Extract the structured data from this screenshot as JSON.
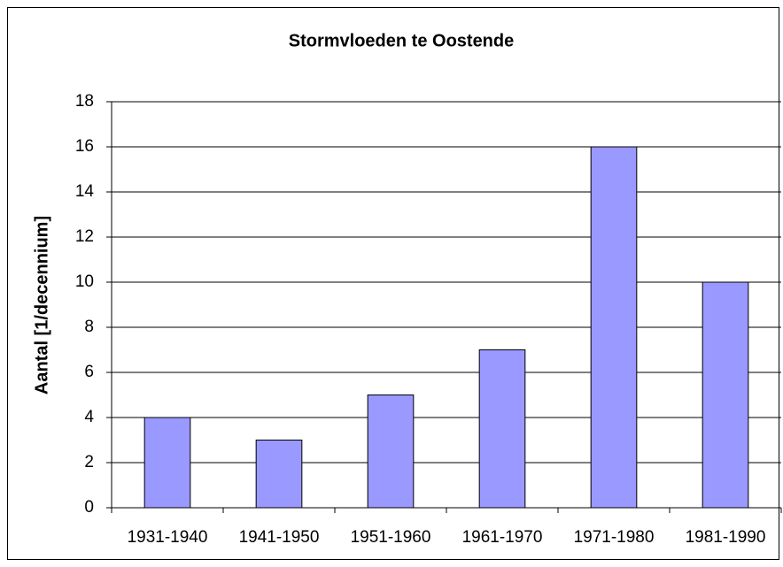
{
  "chart_data": {
    "type": "bar",
    "title": "Stormvloeden te Oostende",
    "y_label": "Aantal [1/decennium]",
    "categories": [
      "1931-1940",
      "1941-1950",
      "1951-1960",
      "1961-1970",
      "1971-1980",
      "1981-1990"
    ],
    "values": [
      4,
      3,
      5,
      7,
      16,
      10
    ],
    "color": "#9999ff",
    "ylim": [
      0,
      18
    ],
    "yticks": [
      0,
      2,
      4,
      6,
      8,
      10,
      12,
      14,
      16,
      18
    ],
    "grid": true
  }
}
